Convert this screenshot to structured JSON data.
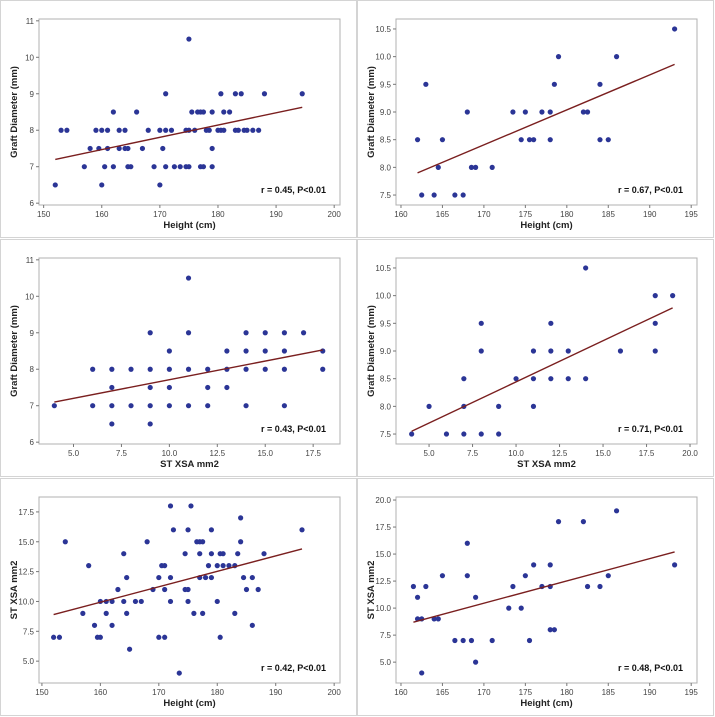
{
  "colors": {
    "point": "#2b3596",
    "fit_line": "#7a1f1f",
    "frame": "#b0b0b0"
  },
  "chart_data": [
    {
      "type": "scatter",
      "xlabel": "Height (cm)",
      "ylabel": "Graft Diameter (mm)",
      "annotation": "r = 0.45, P<0.01",
      "xlim": [
        149.2,
        201
      ],
      "ylim": [
        5.95,
        11.05
      ],
      "xticks": [
        150,
        160,
        170,
        180,
        190,
        200
      ],
      "xtick_labels": [
        "150",
        "160",
        "170",
        "180",
        "190",
        "200"
      ],
      "yticks": [
        6,
        7,
        8,
        9,
        10,
        11
      ],
      "ytick_labels": [
        "6",
        "7",
        "8",
        "9",
        "10",
        "11"
      ],
      "fit": [
        [
          152,
          7.2
        ],
        [
          194.5,
          8.63
        ]
      ],
      "points": [
        [
          152,
          6.5
        ],
        [
          160,
          6.5
        ],
        [
          170,
          6.5
        ],
        [
          157,
          7
        ],
        [
          160.5,
          7
        ],
        [
          162,
          7
        ],
        [
          164.5,
          7
        ],
        [
          165,
          7
        ],
        [
          169,
          7
        ],
        [
          171,
          7
        ],
        [
          172.5,
          7
        ],
        [
          173.5,
          7
        ],
        [
          174.5,
          7
        ],
        [
          175,
          7
        ],
        [
          177,
          7
        ],
        [
          177.5,
          7
        ],
        [
          179,
          7
        ],
        [
          158,
          7.5
        ],
        [
          159.5,
          7.5
        ],
        [
          161,
          7.5
        ],
        [
          163,
          7.5
        ],
        [
          164,
          7.5
        ],
        [
          164.5,
          7.5
        ],
        [
          167,
          7.5
        ],
        [
          170.5,
          7.5
        ],
        [
          179,
          7.5
        ],
        [
          153,
          8
        ],
        [
          154,
          8
        ],
        [
          159,
          8
        ],
        [
          160,
          8
        ],
        [
          161,
          8
        ],
        [
          163,
          8
        ],
        [
          164,
          8
        ],
        [
          168,
          8
        ],
        [
          170,
          8
        ],
        [
          171,
          8
        ],
        [
          172,
          8
        ],
        [
          174.5,
          8
        ],
        [
          175,
          8
        ],
        [
          176,
          8
        ],
        [
          178,
          8
        ],
        [
          178.5,
          8
        ],
        [
          180,
          8
        ],
        [
          180.5,
          8
        ],
        [
          181,
          8
        ],
        [
          183,
          8
        ],
        [
          183.5,
          8
        ],
        [
          184.5,
          8
        ],
        [
          185,
          8
        ],
        [
          186,
          8
        ],
        [
          187,
          8
        ],
        [
          162,
          8.5
        ],
        [
          166,
          8.5
        ],
        [
          175.5,
          8.5
        ],
        [
          176.5,
          8.5
        ],
        [
          177,
          8.5
        ],
        [
          177.5,
          8.5
        ],
        [
          179,
          8.5
        ],
        [
          181,
          8.5
        ],
        [
          182,
          8.5
        ],
        [
          171,
          9
        ],
        [
          180.5,
          9
        ],
        [
          183,
          9
        ],
        [
          184,
          9
        ],
        [
          188,
          9
        ],
        [
          194.5,
          9
        ],
        [
          175,
          10.5
        ]
      ]
    },
    {
      "type": "scatter",
      "xlabel": "Height (cm)",
      "ylabel": "Graft Diameter (mm)",
      "annotation": "r = 0.67, P<0.01",
      "xlim": [
        159.4,
        195.7
      ],
      "ylim": [
        7.32,
        10.68
      ],
      "xticks": [
        160,
        165,
        170,
        175,
        180,
        185,
        190,
        195
      ],
      "xtick_labels": [
        "160",
        "165",
        "170",
        "175",
        "180",
        "185",
        "190",
        "195"
      ],
      "yticks": [
        7.5,
        8,
        8.5,
        9,
        9.5,
        10,
        10.5
      ],
      "ytick_labels": [
        "7.5",
        "8.0",
        "8.5",
        "9.0",
        "9.5",
        "10.0",
        "10.5"
      ],
      "fit": [
        [
          162,
          7.9
        ],
        [
          193,
          9.86
        ]
      ],
      "points": [
        [
          162.5,
          7.5
        ],
        [
          164,
          7.5
        ],
        [
          166.5,
          7.5
        ],
        [
          167.5,
          7.5
        ],
        [
          164.5,
          8
        ],
        [
          168.5,
          8
        ],
        [
          169,
          8
        ],
        [
          171,
          8
        ],
        [
          162,
          8.5
        ],
        [
          165,
          8.5
        ],
        [
          174.5,
          8.5
        ],
        [
          175.5,
          8.5
        ],
        [
          176,
          8.5
        ],
        [
          178,
          8.5
        ],
        [
          184,
          8.5
        ],
        [
          185,
          8.5
        ],
        [
          168,
          9
        ],
        [
          173.5,
          9
        ],
        [
          175,
          9
        ],
        [
          177,
          9
        ],
        [
          178,
          9
        ],
        [
          182,
          9
        ],
        [
          182.5,
          9
        ],
        [
          163,
          9.5
        ],
        [
          178.5,
          9.5
        ],
        [
          184,
          9.5
        ],
        [
          179,
          10
        ],
        [
          186,
          10
        ],
        [
          193,
          10.5
        ]
      ]
    },
    {
      "type": "scatter",
      "xlabel": "ST XSA mm2",
      "ylabel": "Graft Diameter (mm)",
      "annotation": "r = 0.43, P<0.01",
      "xlim": [
        3.2,
        18.9
      ],
      "ylim": [
        5.95,
        11.05
      ],
      "xticks": [
        5,
        7.5,
        10,
        12.5,
        15,
        17.5
      ],
      "xtick_labels": [
        "5.0",
        "7.5",
        "10.0",
        "12.5",
        "15.0",
        "17.5"
      ],
      "yticks": [
        6,
        7,
        8,
        9,
        10,
        11
      ],
      "ytick_labels": [
        "6",
        "7",
        "8",
        "9",
        "10",
        "11"
      ],
      "fit": [
        [
          4,
          7.1
        ],
        [
          18,
          8.53
        ]
      ],
      "points": [
        [
          4,
          7
        ],
        [
          6,
          7
        ],
        [
          7,
          7
        ],
        [
          8,
          7
        ],
        [
          9,
          7
        ],
        [
          10,
          7
        ],
        [
          11,
          7
        ],
        [
          12,
          7
        ],
        [
          14,
          7
        ],
        [
          16,
          7
        ],
        [
          7,
          6.5
        ],
        [
          9,
          6.5
        ],
        [
          7,
          7.5
        ],
        [
          9,
          7.5
        ],
        [
          10,
          7.5
        ],
        [
          12,
          7.5
        ],
        [
          13,
          7.5
        ],
        [
          6,
          8
        ],
        [
          7,
          8
        ],
        [
          8,
          8
        ],
        [
          9,
          8
        ],
        [
          10,
          8
        ],
        [
          11,
          8
        ],
        [
          12,
          8
        ],
        [
          13,
          8
        ],
        [
          14,
          8
        ],
        [
          15,
          8
        ],
        [
          16,
          8
        ],
        [
          18,
          8
        ],
        [
          10,
          8.5
        ],
        [
          13,
          8.5
        ],
        [
          14,
          8.5
        ],
        [
          15,
          8.5
        ],
        [
          16,
          8.5
        ],
        [
          18,
          8.5
        ],
        [
          9,
          9
        ],
        [
          11,
          9
        ],
        [
          14,
          9
        ],
        [
          15,
          9
        ],
        [
          16,
          9
        ],
        [
          17,
          9
        ],
        [
          11,
          10.5
        ]
      ]
    },
    {
      "type": "scatter",
      "xlabel": "ST XSA mm2",
      "ylabel": "Graft Diameter (mm)",
      "annotation": "r = 0.71, P<0.01",
      "xlim": [
        3.1,
        20.4
      ],
      "ylim": [
        7.32,
        10.68
      ],
      "xticks": [
        5,
        7.5,
        10,
        12.5,
        15,
        17.5,
        20
      ],
      "xtick_labels": [
        "5.0",
        "7.5",
        "10.0",
        "12.5",
        "15.0",
        "17.5",
        "20.0"
      ],
      "yticks": [
        7.5,
        8,
        8.5,
        9,
        9.5,
        10,
        10.5
      ],
      "ytick_labels": [
        "7.5",
        "8.0",
        "8.5",
        "9.0",
        "9.5",
        "10.0",
        "10.5"
      ],
      "fit": [
        [
          4,
          7.55
        ],
        [
          19,
          9.78
        ]
      ],
      "points": [
        [
          4,
          7.5
        ],
        [
          6,
          7.5
        ],
        [
          7,
          7.5
        ],
        [
          8,
          7.5
        ],
        [
          9,
          7.5
        ],
        [
          5,
          8
        ],
        [
          7,
          8
        ],
        [
          9,
          8
        ],
        [
          11,
          8
        ],
        [
          7,
          8.5
        ],
        [
          10,
          8.5
        ],
        [
          11,
          8.5
        ],
        [
          12,
          8.5
        ],
        [
          13,
          8.5
        ],
        [
          14,
          8.5
        ],
        [
          8,
          9
        ],
        [
          11,
          9
        ],
        [
          12,
          9
        ],
        [
          13,
          9
        ],
        [
          16,
          9
        ],
        [
          18,
          9
        ],
        [
          8,
          9.5
        ],
        [
          12,
          9.5
        ],
        [
          18,
          9.5
        ],
        [
          18,
          10
        ],
        [
          19,
          10
        ],
        [
          14,
          10.5
        ]
      ]
    },
    {
      "type": "scatter",
      "xlabel": "Height (cm)",
      "ylabel": "ST XSA mm2",
      "annotation": "r = 0.42, P<0.01",
      "xlim": [
        149.5,
        201
      ],
      "ylim": [
        3.17,
        18.75
      ],
      "xticks": [
        150,
        160,
        170,
        180,
        190,
        200
      ],
      "xtick_labels": [
        "150",
        "160",
        "170",
        "180",
        "190",
        "200"
      ],
      "yticks": [
        5,
        7.5,
        10,
        12.5,
        15,
        17.5
      ],
      "ytick_labels": [
        "5.0",
        "7.5",
        "10.0",
        "12.5",
        "15.0",
        "17.5"
      ],
      "fit": [
        [
          152,
          8.9
        ],
        [
          194.5,
          14.4
        ]
      ],
      "points": [
        [
          152,
          7
        ],
        [
          153,
          7
        ],
        [
          159.5,
          7
        ],
        [
          160,
          7
        ],
        [
          170,
          7
        ],
        [
          171,
          7
        ],
        [
          180.5,
          7
        ],
        [
          159,
          8
        ],
        [
          162,
          8
        ],
        [
          186,
          8
        ],
        [
          157,
          9
        ],
        [
          161,
          9
        ],
        [
          164.5,
          9
        ],
        [
          176,
          9
        ],
        [
          177.5,
          9
        ],
        [
          183,
          9
        ],
        [
          165,
          6
        ],
        [
          173.5,
          4
        ],
        [
          160,
          10
        ],
        [
          161,
          10
        ],
        [
          162,
          10
        ],
        [
          164,
          10
        ],
        [
          166,
          10
        ],
        [
          167,
          10
        ],
        [
          172,
          10
        ],
        [
          175,
          10
        ],
        [
          180,
          10
        ],
        [
          163,
          11
        ],
        [
          169,
          11
        ],
        [
          171,
          11
        ],
        [
          174.5,
          11
        ],
        [
          175,
          11
        ],
        [
          185,
          11
        ],
        [
          187,
          11
        ],
        [
          164.5,
          12
        ],
        [
          170,
          12
        ],
        [
          172,
          12
        ],
        [
          177,
          12
        ],
        [
          178,
          12
        ],
        [
          179,
          12
        ],
        [
          184.5,
          12
        ],
        [
          186,
          12
        ],
        [
          158,
          13
        ],
        [
          170.5,
          13
        ],
        [
          171,
          13
        ],
        [
          178.5,
          13
        ],
        [
          180,
          13
        ],
        [
          181,
          13
        ],
        [
          182,
          13
        ],
        [
          183,
          13
        ],
        [
          164,
          14
        ],
        [
          174.5,
          14
        ],
        [
          177,
          14
        ],
        [
          179,
          14
        ],
        [
          180.5,
          14
        ],
        [
          181,
          14
        ],
        [
          183.5,
          14
        ],
        [
          188,
          14
        ],
        [
          154,
          15
        ],
        [
          168,
          15
        ],
        [
          176.5,
          15
        ],
        [
          177,
          15
        ],
        [
          177.5,
          15
        ],
        [
          184,
          15
        ],
        [
          172.5,
          16
        ],
        [
          175,
          16
        ],
        [
          179,
          16
        ],
        [
          194.5,
          16
        ],
        [
          184,
          17
        ],
        [
          172,
          18
        ],
        [
          175.5,
          18
        ]
      ]
    },
    {
      "type": "scatter",
      "xlabel": "Height (cm)",
      "ylabel": "ST XSA mm2",
      "annotation": "r = 0.48, P<0.01",
      "xlim": [
        159.4,
        195.7
      ],
      "ylim": [
        3.07,
        20.28
      ],
      "xticks": [
        160,
        165,
        170,
        175,
        180,
        185,
        190,
        195
      ],
      "xtick_labels": [
        "160",
        "165",
        "170",
        "175",
        "180",
        "185",
        "190",
        "195"
      ],
      "yticks": [
        5,
        7.5,
        10,
        12.5,
        15,
        17.5,
        20
      ],
      "ytick_labels": [
        "5.0",
        "7.5",
        "10.0",
        "12.5",
        "15.0",
        "17.5",
        "20.0"
      ],
      "fit": [
        [
          161.5,
          8.7
        ],
        [
          193,
          15.2
        ]
      ],
      "points": [
        [
          162.5,
          4
        ],
        [
          169,
          5
        ],
        [
          166.5,
          7
        ],
        [
          167.5,
          7
        ],
        [
          168.5,
          7
        ],
        [
          171,
          7
        ],
        [
          175.5,
          7
        ],
        [
          178,
          8
        ],
        [
          178.5,
          8
        ],
        [
          162,
          9
        ],
        [
          162.5,
          9
        ],
        [
          164,
          9
        ],
        [
          164.5,
          9
        ],
        [
          173,
          10
        ],
        [
          174.5,
          10
        ],
        [
          162,
          11
        ],
        [
          169,
          11
        ],
        [
          161.5,
          12
        ],
        [
          163,
          12
        ],
        [
          173.5,
          12
        ],
        [
          177,
          12
        ],
        [
          178,
          12
        ],
        [
          182.5,
          12
        ],
        [
          184,
          12
        ],
        [
          165,
          13
        ],
        [
          168,
          13
        ],
        [
          175,
          13
        ],
        [
          185,
          13
        ],
        [
          176,
          14
        ],
        [
          178,
          14
        ],
        [
          193,
          14
        ],
        [
          168,
          16
        ],
        [
          179,
          18
        ],
        [
          182,
          18
        ],
        [
          186,
          19
        ]
      ]
    }
  ]
}
